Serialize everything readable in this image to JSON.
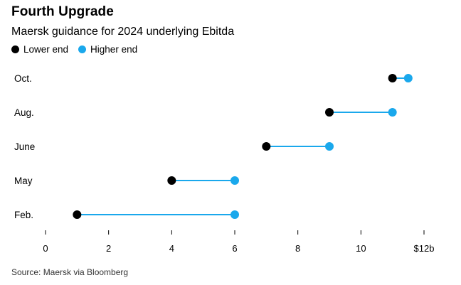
{
  "header": {
    "title": "Fourth Upgrade",
    "subtitle": "Maersk guidance for 2024 underlying Ebitda"
  },
  "legend": {
    "lower_label": "Lower end",
    "higher_label": "Higher end"
  },
  "colors": {
    "lower": "#000000",
    "higher": "#1aa8ec",
    "axis": "#000000"
  },
  "source": "Source: Maersk via Bloomberg",
  "chart_data": {
    "type": "dumbbell",
    "title": "Fourth Upgrade",
    "subtitle": "Maersk guidance for 2024 underlying Ebitda",
    "xlabel": "",
    "ylabel": "",
    "xlim": [
      0,
      12
    ],
    "xticks": [
      0,
      2,
      4,
      6,
      8,
      10,
      12
    ],
    "xtick_labels": [
      "0",
      "2",
      "4",
      "6",
      "8",
      "10",
      "$12b"
    ],
    "categories": [
      "Oct.",
      "Aug.",
      "June",
      "May",
      "Feb."
    ],
    "series": [
      {
        "name": "Lower end",
        "values": [
          11,
          9,
          7,
          4,
          1
        ]
      },
      {
        "name": "Higher end",
        "values": [
          11.5,
          11,
          9,
          6,
          6
        ]
      }
    ],
    "legend_position": "top-left",
    "grid": false
  }
}
